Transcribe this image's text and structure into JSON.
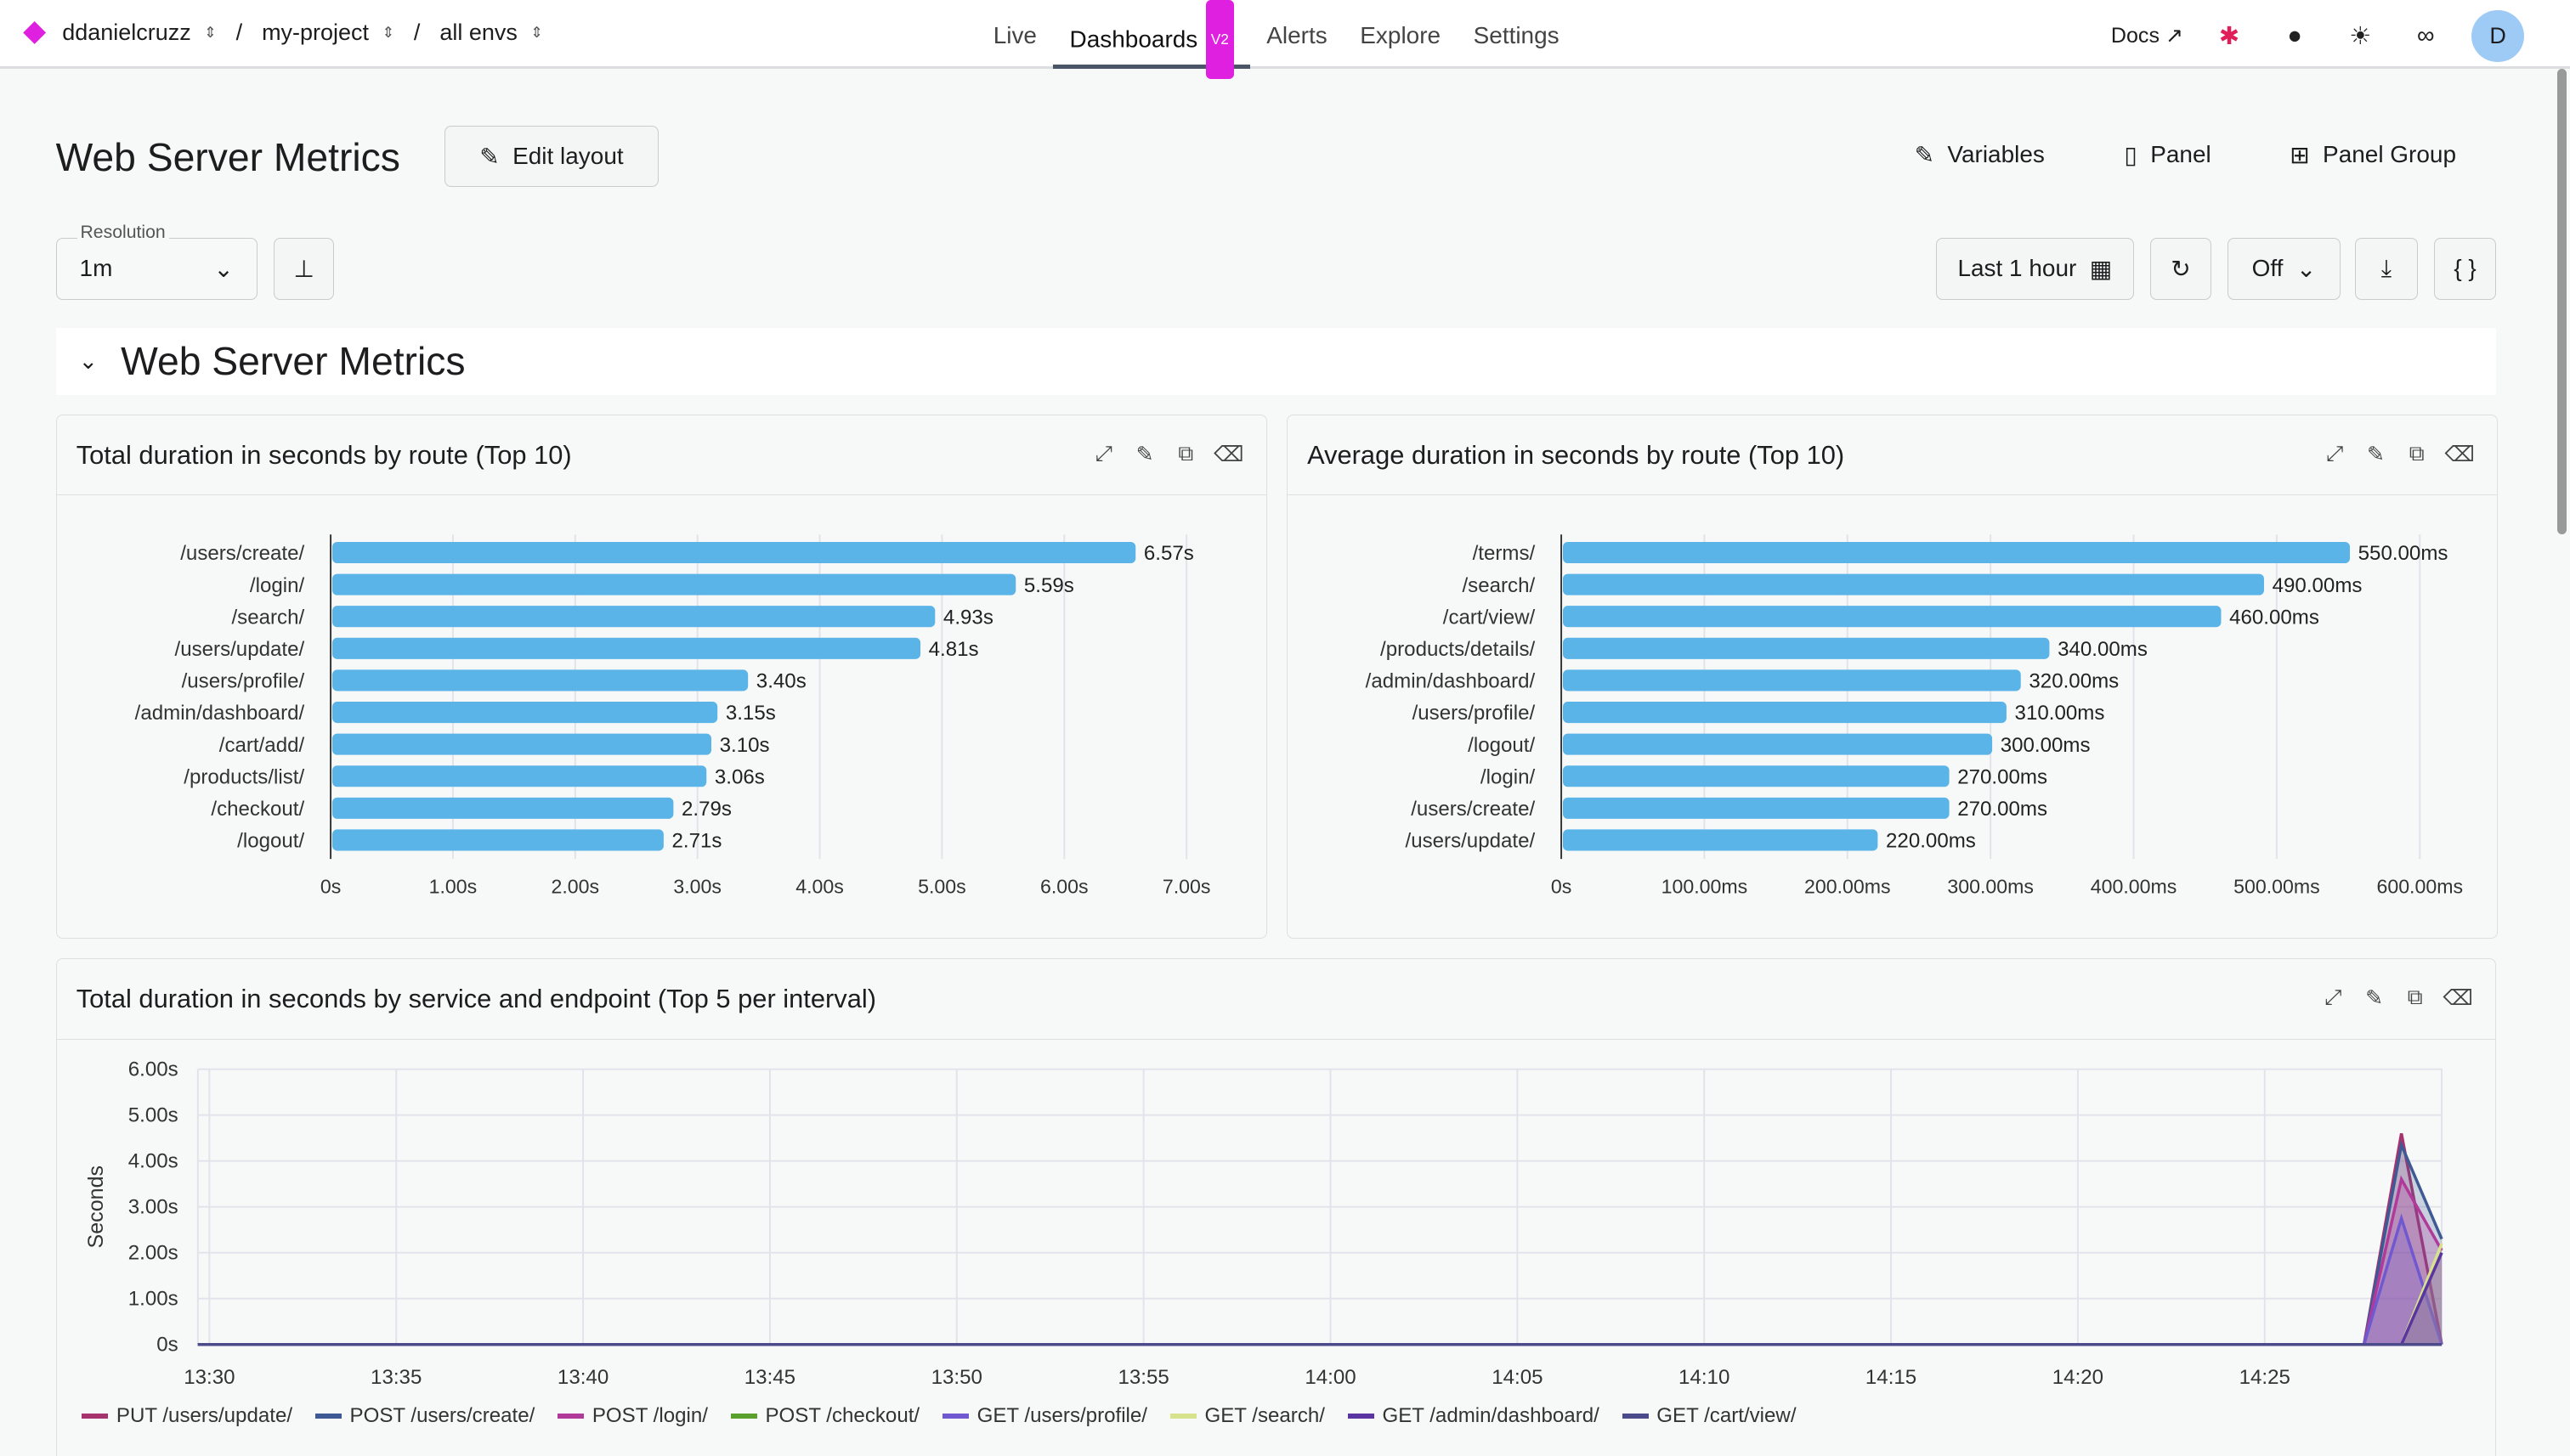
{
  "breadcrumb": {
    "org": "ddanielcruzz",
    "project": "my-project",
    "env": "all envs"
  },
  "nav": {
    "items": [
      "Live",
      "Dashboards",
      "Alerts",
      "Explore",
      "Settings"
    ],
    "active": "Dashboards",
    "badge": "V2"
  },
  "header_right": {
    "docs": "Docs",
    "avatar": "D"
  },
  "page": {
    "title": "Web Server Metrics",
    "edit_layout": "Edit layout",
    "variables": "Variables",
    "panel": "Panel",
    "panel_group": "Panel Group"
  },
  "toolbar": {
    "resolution_label": "Resolution",
    "resolution": "1m",
    "time_range": "Last 1 hour",
    "refresh": "Off"
  },
  "group_title": "Web Server Metrics",
  "chart_data": [
    {
      "type": "bar",
      "orientation": "horizontal",
      "title": "Total duration in seconds by route (Top 10)",
      "categories": [
        "/users/create/",
        "/login/",
        "/search/",
        "/users/update/",
        "/users/profile/",
        "/admin/dashboard/",
        "/cart/add/",
        "/products/list/",
        "/checkout/",
        "/logout/"
      ],
      "values": [
        6.57,
        5.59,
        4.93,
        4.81,
        3.4,
        3.15,
        3.1,
        3.06,
        2.79,
        2.71
      ],
      "labels": [
        "6.57s",
        "5.59s",
        "4.93s",
        "4.81s",
        "3.40s",
        "3.15s",
        "3.10s",
        "3.06s",
        "2.79s",
        "2.71s"
      ],
      "ticks": [
        "0s",
        "1.00s",
        "2.00s",
        "3.00s",
        "4.00s",
        "5.00s",
        "6.00s",
        "7.00s"
      ],
      "xlim": [
        0,
        7.3
      ],
      "color": "#5ab4e8"
    },
    {
      "type": "bar",
      "orientation": "horizontal",
      "title": "Average duration in seconds by route (Top 10)",
      "categories": [
        "/terms/",
        "/search/",
        "/cart/view/",
        "/products/details/",
        "/admin/dashboard/",
        "/users/profile/",
        "/logout/",
        "/login/",
        "/users/create/",
        "/users/update/"
      ],
      "values": [
        550,
        490,
        460,
        340,
        320,
        310,
        300,
        270,
        270,
        220
      ],
      "labels": [
        "550.00ms",
        "490.00ms",
        "460.00ms",
        "340.00ms",
        "320.00ms",
        "310.00ms",
        "300.00ms",
        "270.00ms",
        "270.00ms",
        "220.00ms"
      ],
      "ticks": [
        "0s",
        "100.00ms",
        "200.00ms",
        "300.00ms",
        "400.00ms",
        "500.00ms",
        "600.00ms"
      ],
      "xlim": [
        0,
        630
      ],
      "color": "#5ab4e8"
    },
    {
      "type": "area",
      "title": "Total duration in seconds by service and endpoint (Top 5 per interval)",
      "ylabel": "Seconds",
      "yticks": [
        "0s",
        "1.00s",
        "2.00s",
        "3.00s",
        "4.00s",
        "5.00s",
        "6.00s"
      ],
      "ylim": [
        0,
        6
      ],
      "xticks": [
        "13:30",
        "13:35",
        "13:40",
        "13:45",
        "13:50",
        "13:55",
        "14:00",
        "14:05",
        "14:10",
        "14:15",
        "14:20",
        "14:25"
      ],
      "x": [
        "13:30",
        "14:27",
        "14:28",
        "14:29"
      ],
      "series": [
        {
          "name": "PUT /users/update/",
          "color": "#a6336e",
          "values": [
            0,
            0,
            4.6,
            0
          ]
        },
        {
          "name": "POST /users/create/",
          "color": "#3e5a94",
          "values": [
            0,
            0,
            4.35,
            2.3
          ]
        },
        {
          "name": "POST /login/",
          "color": "#b0399a",
          "values": [
            0,
            0,
            3.6,
            2.05
          ]
        },
        {
          "name": "POST /checkout/",
          "color": "#5aa02c",
          "values": [
            0,
            0,
            0,
            0
          ]
        },
        {
          "name": "GET /users/profile/",
          "color": "#7058d0",
          "values": [
            0,
            0,
            2.75,
            0
          ]
        },
        {
          "name": "GET /search/",
          "color": "#d6e38c",
          "values": [
            0,
            0,
            0,
            2.2
          ]
        },
        {
          "name": "GET /admin/dashboard/",
          "color": "#5a34a0",
          "values": [
            0,
            0,
            0,
            2.0
          ]
        },
        {
          "name": "GET /cart/view/",
          "color": "#4b4b8c",
          "values": [
            0,
            0,
            0,
            0
          ]
        }
      ]
    }
  ]
}
